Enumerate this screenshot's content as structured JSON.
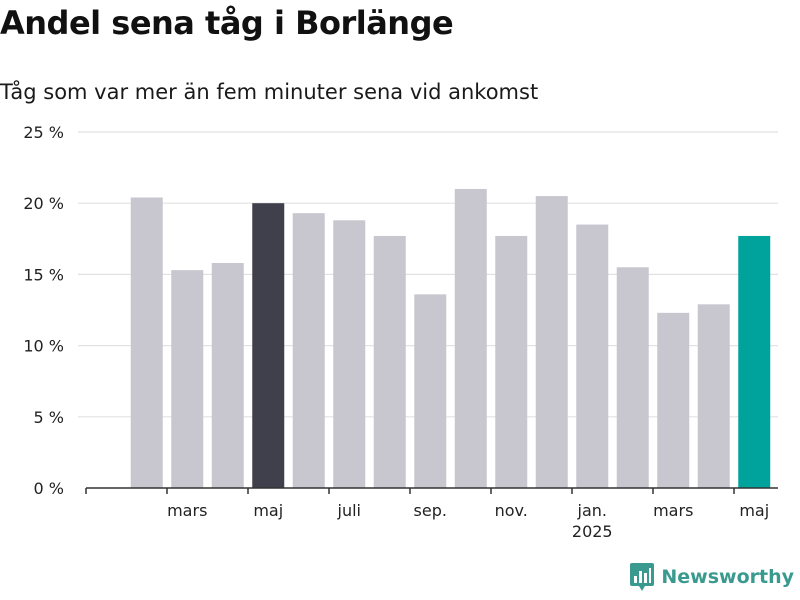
{
  "chart_data": {
    "type": "bar",
    "title": "Andel sena tåg i Borlänge",
    "subtitle": "Tåg som var mer än fem minuter sena vid ankomst",
    "xlabel": "",
    "ylabel": "",
    "ylim": [
      0,
      25
    ],
    "yticks": [
      0,
      5,
      10,
      15,
      20,
      25
    ],
    "ytick_labels": [
      "0 %",
      "5 %",
      "10 %",
      "15 %",
      "20 %",
      "25 %"
    ],
    "grid": true,
    "categories": [
      "2024-01",
      "2024-02",
      "2024-03",
      "2024-04",
      "2024-05",
      "2024-06",
      "2024-07",
      "2024-08",
      "2024-09",
      "2024-10",
      "2024-11",
      "2024-12",
      "2025-01",
      "2025-02",
      "2025-03",
      "2025-04",
      "2025-05"
    ],
    "values": [
      null,
      20.4,
      15.3,
      15.8,
      20.0,
      19.3,
      18.8,
      17.7,
      13.6,
      21.0,
      17.7,
      20.5,
      18.5,
      15.5,
      12.3,
      12.9,
      17.7
    ],
    "x_tick_labels": [
      {
        "index": 2,
        "label": "mars"
      },
      {
        "index": 4,
        "label": "maj"
      },
      {
        "index": 6,
        "label": "juli"
      },
      {
        "index": 8,
        "label": "sep."
      },
      {
        "index": 10,
        "label": "nov."
      },
      {
        "index": 12,
        "label": "jan.",
        "sublabel": "2025"
      },
      {
        "index": 14,
        "label": "mars"
      },
      {
        "index": 16,
        "label": "maj"
      }
    ],
    "colors": {
      "default": "#c8c7cf",
      "highlight_previous_year": "#40404c",
      "highlight_current": "#00a39b",
      "grid": "#e2e2e2",
      "axis": "#333333"
    },
    "highlight_previous_year_index": 4,
    "highlight_current_index": 16
  },
  "brand": {
    "name": "Newsworthy",
    "logo_icon": "newsworthy-chart-icon",
    "color": "#3a9a8f"
  }
}
